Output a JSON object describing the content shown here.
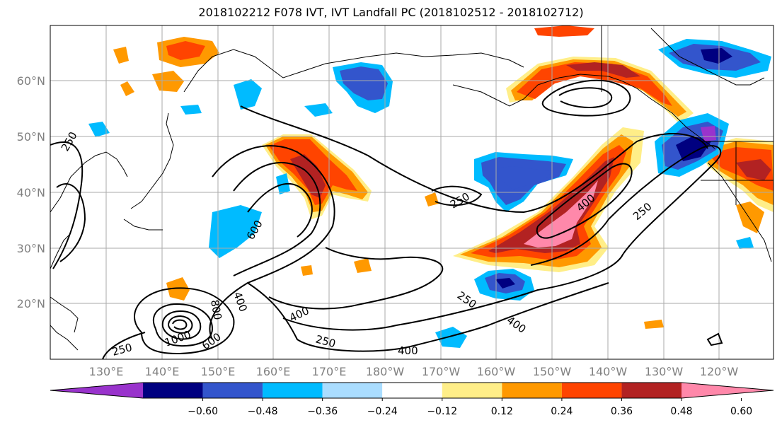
{
  "title": "2018102212 F078 IVT, IVT Landfall PC (2018102512 - 2018102712)",
  "map": {
    "lat_labels": [
      "60°N",
      "50°N",
      "40°N",
      "30°N",
      "20°N"
    ],
    "lon_labels": [
      "130°E",
      "140°E",
      "150°E",
      "160°E",
      "170°E",
      "180°W",
      "170°W",
      "160°W",
      "150°W",
      "140°W",
      "130°W",
      "120°W"
    ],
    "contour_labels": [
      "250",
      "250",
      "250",
      "250",
      "250",
      "250",
      "400",
      "400",
      "400",
      "400",
      "400",
      "600",
      "600",
      "800",
      "1000"
    ]
  },
  "colorbar": {
    "colors": [
      "#9933cc",
      "#000080",
      "#3355cc",
      "#00bbff",
      "#aaddff",
      "#ffffff",
      "#ffee88",
      "#ff9900",
      "#ff4400",
      "#b22222",
      "#ff88aa"
    ],
    "tick_labels": [
      "−0.60",
      "−0.48",
      "−0.36",
      "−0.24",
      "−0.12",
      "0.12",
      "0.24",
      "0.36",
      "0.48",
      "0.60"
    ]
  }
}
